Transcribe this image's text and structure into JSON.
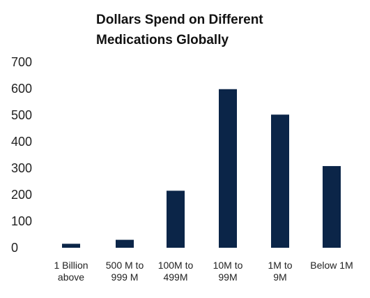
{
  "chart_data": {
    "type": "bar",
    "title_lines": [
      "Dollars Spend on Different",
      "Medications Globally"
    ],
    "categories": [
      [
        "1 Billion",
        "above"
      ],
      [
        "500 M to",
        "999 M"
      ],
      [
        "100M to",
        "499M"
      ],
      [
        "10M to",
        "99M"
      ],
      [
        "1M to",
        "9M"
      ],
      [
        "Below 1M"
      ]
    ],
    "values": [
      15,
      30,
      215,
      598,
      502,
      308
    ],
    "ylim": [
      0,
      700
    ],
    "yticks": [
      0,
      100,
      200,
      300,
      400,
      500,
      600,
      700
    ],
    "grid": false,
    "legend": "none",
    "bar_color": "#0b2548"
  }
}
